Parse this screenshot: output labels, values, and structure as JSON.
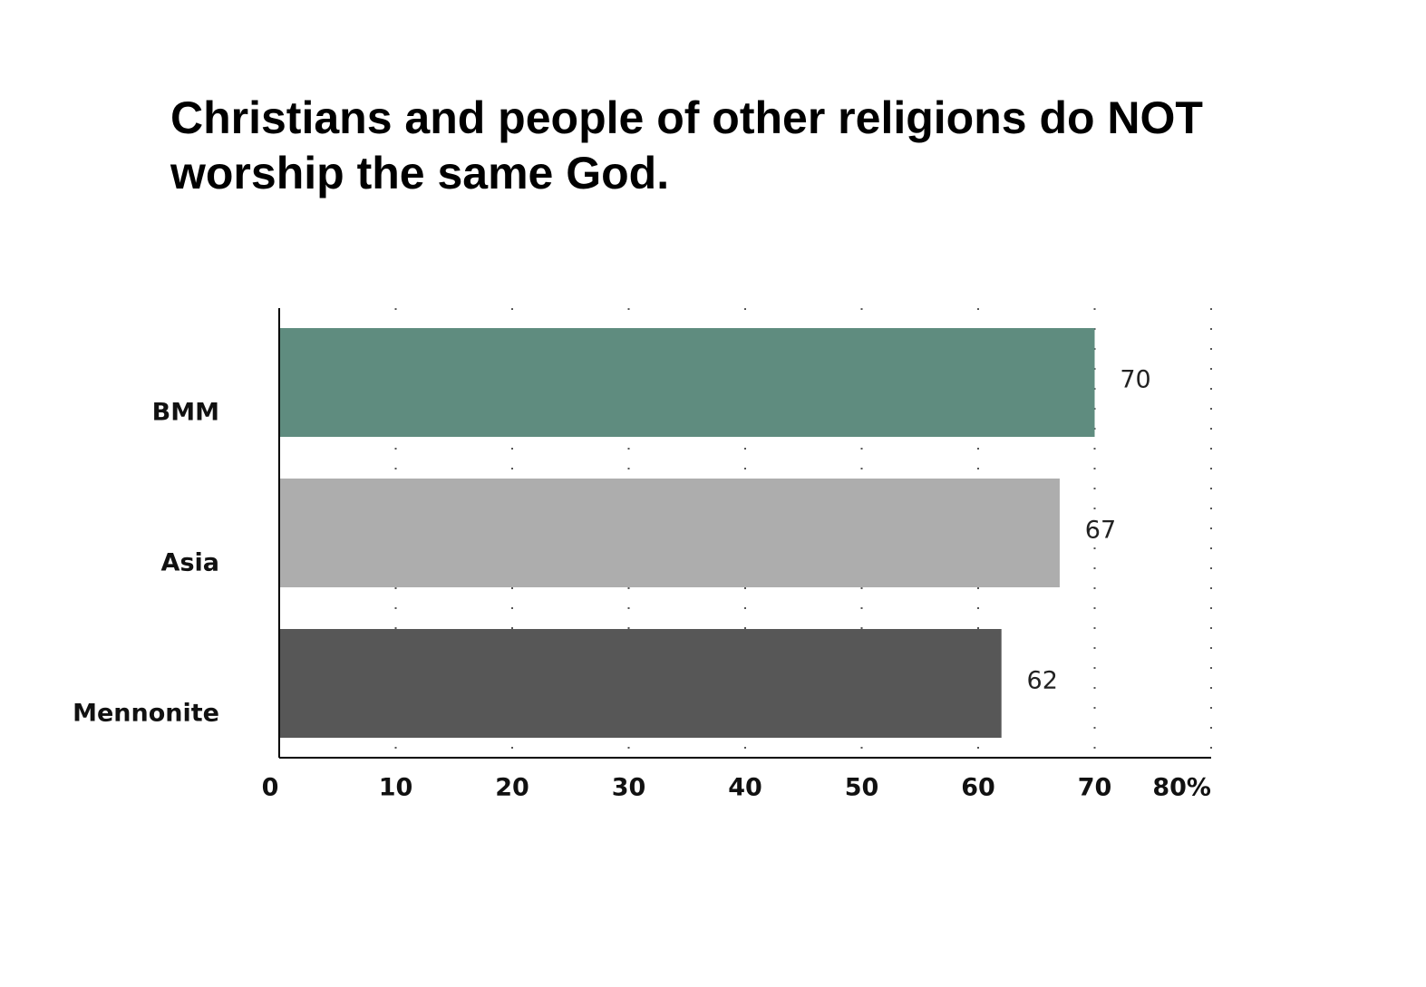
{
  "chart_data": {
    "type": "bar",
    "orientation": "horizontal",
    "title": "Christians and people of other religions do NOT worship the same God.",
    "categories": [
      "BMM",
      "Asia",
      "Mennonite"
    ],
    "values": [
      70,
      67,
      62
    ],
    "value_labels": [
      "70",
      "67",
      "62"
    ],
    "colors": [
      "#5f8c7f",
      "#adadad",
      "#575757"
    ],
    "xlim": [
      0,
      80
    ],
    "x_ticks": [
      0,
      10,
      20,
      30,
      40,
      50,
      60,
      70,
      80
    ],
    "x_tick_labels": [
      "0",
      "10",
      "20",
      "30",
      "40",
      "50",
      "60",
      "70",
      "80%"
    ],
    "grid": "vertical-dotted",
    "legend": "none",
    "xlabel": "",
    "ylabel": ""
  }
}
